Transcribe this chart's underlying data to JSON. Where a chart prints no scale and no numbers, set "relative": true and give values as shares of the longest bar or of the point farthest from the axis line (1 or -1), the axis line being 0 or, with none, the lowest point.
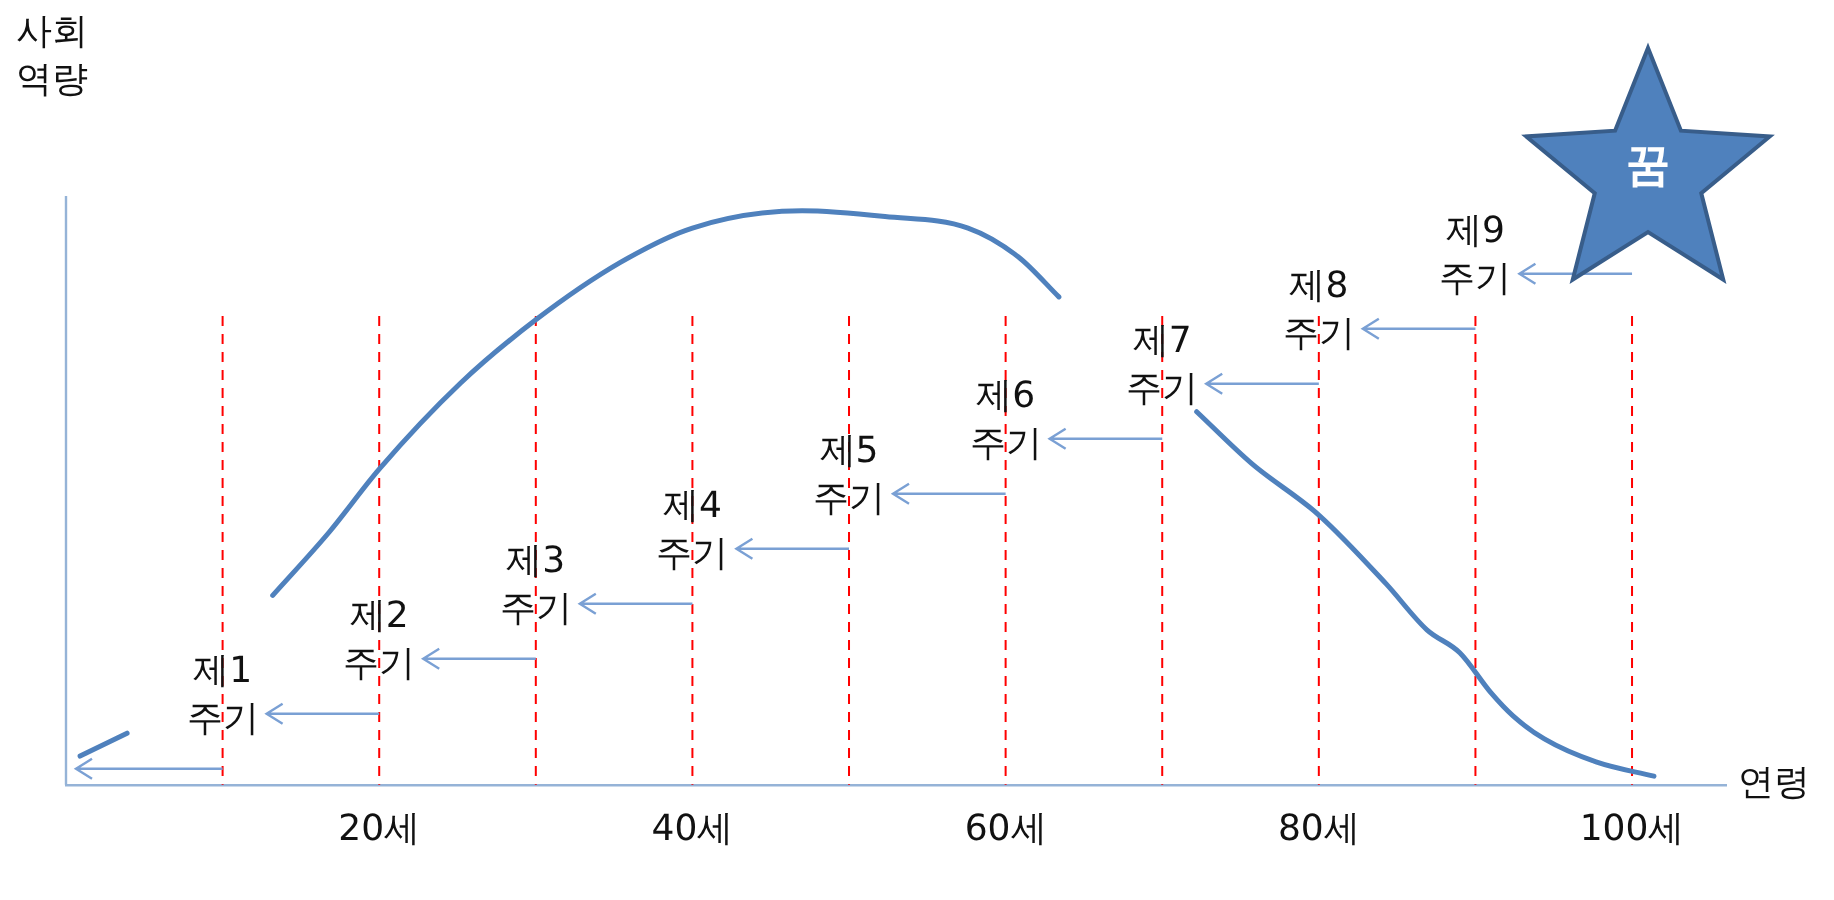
{
  "chart_data": {
    "type": "line",
    "relative": true,
    "xlabel": "연령",
    "ylabel": "사회\n역량",
    "x": [
      0.9,
      3.9,
      8,
      13.2,
      16.8,
      20,
      25.2,
      30,
      35.4,
      40,
      47,
      52.3,
      57.6,
      60.8,
      63.4,
      68,
      72.2,
      75.7,
      80,
      84.3,
      86.9,
      89,
      91,
      92.4,
      94.4,
      97.7,
      101.4
    ],
    "series": [
      {
        "color": "#4f81bd",
        "values": [
          0.05,
          0.09,
          null,
          0.33,
          0.44,
          0.55,
          0.7,
          0.81,
          0.91,
          0.97,
          1.0,
          0.99,
          0.97,
          0.92,
          0.85,
          null,
          0.65,
          0.56,
          0.47,
          0.35,
          0.27,
          0.23,
          0.16,
          0.12,
          0.08,
          0.04,
          0.015
        ]
      }
    ],
    "xlim": [
      0,
      106
    ],
    "xticks": [
      {
        "value": 20,
        "label": "20세"
      },
      {
        "value": 40,
        "label": "40세"
      },
      {
        "value": 60,
        "label": "60세"
      },
      {
        "value": 80,
        "label": "80세"
      },
      {
        "value": 100,
        "label": "100세"
      }
    ],
    "ref_lines": [
      {
        "axis": "x",
        "value": 10,
        "color": "#ff0000",
        "line_style": "dashed"
      },
      {
        "axis": "x",
        "value": 20,
        "color": "#ff0000",
        "line_style": "dashed"
      },
      {
        "axis": "x",
        "value": 30,
        "color": "#ff0000",
        "line_style": "dashed"
      },
      {
        "axis": "x",
        "value": 40,
        "color": "#ff0000",
        "line_style": "dashed"
      },
      {
        "axis": "x",
        "value": 50,
        "color": "#ff0000",
        "line_style": "dashed"
      },
      {
        "axis": "x",
        "value": 60,
        "color": "#ff0000",
        "line_style": "dashed"
      },
      {
        "axis": "x",
        "value": 70,
        "color": "#ff0000",
        "line_style": "dashed"
      },
      {
        "axis": "x",
        "value": 80,
        "color": "#ff0000",
        "line_style": "dashed"
      },
      {
        "axis": "x",
        "value": 90,
        "color": "#ff0000",
        "line_style": "dashed"
      },
      {
        "axis": "x",
        "value": 100,
        "color": "#ff0000",
        "line_style": "dashed"
      }
    ],
    "annotations": [
      "제1\n주기",
      "제2\n주기",
      "제3\n주기",
      "제4\n주기",
      "제5\n주기",
      "제6\n주기",
      "제7\n주기",
      "제8\n주기",
      "제9\n주기",
      "꿈"
    ],
    "marker": "none",
    "line_style": "solid",
    "grid": false,
    "legend": false
  }
}
